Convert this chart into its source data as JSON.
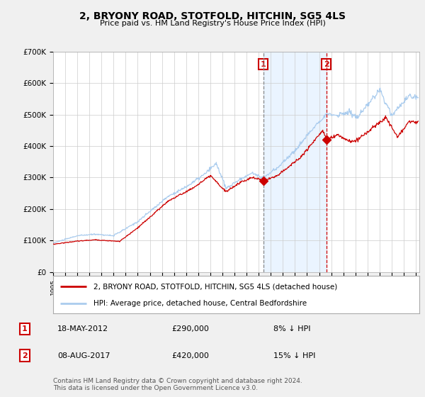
{
  "title": "2, BRYONY ROAD, STOTFOLD, HITCHIN, SG5 4LS",
  "subtitle": "Price paid vs. HM Land Registry's House Price Index (HPI)",
  "red_line_label": "2, BRYONY ROAD, STOTFOLD, HITCHIN, SG5 4LS (detached house)",
  "blue_line_label": "HPI: Average price, detached house, Central Bedfordshire",
  "marker1_date": "18-MAY-2012",
  "marker1_price": 290000,
  "marker1_pct": "8% ↓ HPI",
  "marker2_date": "08-AUG-2017",
  "marker2_price": 420000,
  "marker2_pct": "15% ↓ HPI",
  "footnote1": "Contains HM Land Registry data © Crown copyright and database right 2024.",
  "footnote2": "This data is licensed under the Open Government Licence v3.0.",
  "ylim": [
    0,
    700000
  ],
  "yticks": [
    0,
    100000,
    200000,
    300000,
    400000,
    500000,
    600000,
    700000
  ],
  "ytick_labels": [
    "£0",
    "£100K",
    "£200K",
    "£300K",
    "£400K",
    "£500K",
    "£600K",
    "£700K"
  ],
  "xlim_start": 1995.0,
  "xlim_end": 2025.3,
  "vline1_x": 2012.38,
  "vline2_x": 2017.6,
  "shade_start": 2012.38,
  "shade_end": 2017.6,
  "marker1_x": 2012.38,
  "marker1_y": 290000,
  "marker2_x": 2017.6,
  "marker2_y": 420000,
  "bg_color": "#f0f0f0",
  "plot_bg_color": "#ffffff",
  "grid_color": "#cccccc",
  "red_color": "#cc0000",
  "blue_color": "#aaccee",
  "shade_color": "#ddeeff",
  "vline1_color": "#888888",
  "vline2_color": "#cc0000",
  "title_fontsize": 10,
  "subtitle_fontsize": 8,
  "axis_fontsize": 7.5,
  "legend_fontsize": 7.5,
  "footnote_fontsize": 6.5
}
